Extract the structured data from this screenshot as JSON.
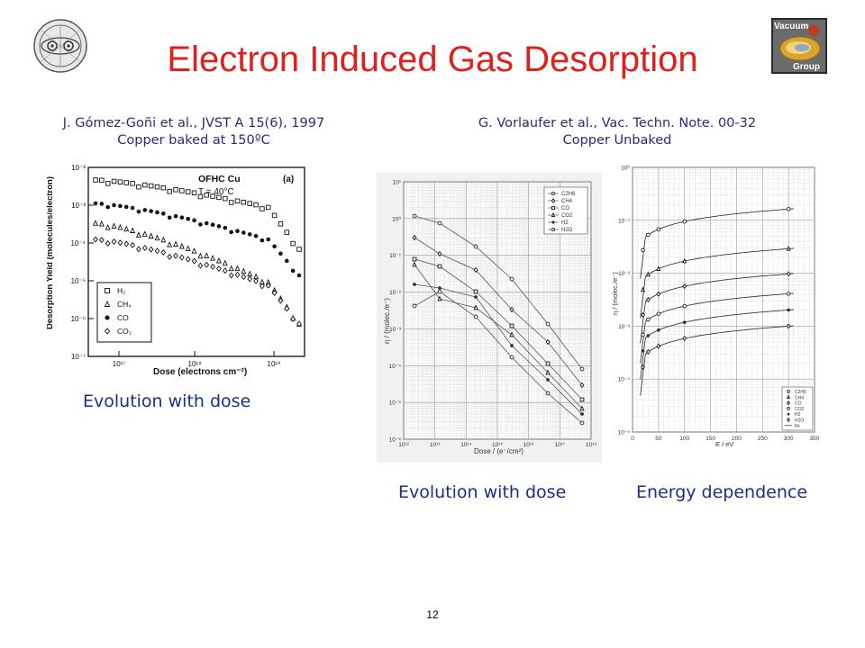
{
  "slide": {
    "title": "Electron Induced Gas Desorption",
    "page_number": "12"
  },
  "logos": {
    "left": "circular institute seal",
    "right": {
      "line1": "Vacuum",
      "line2": "Group"
    }
  },
  "references": {
    "left": {
      "line1": "J. Gómez-Goñi et al., JVST A 15(6), 1997",
      "line2": "Copper baked at 150ºC"
    },
    "right": {
      "line1": "G. Vorlaufer et al., Vac. Techn. Note. 00-32",
      "line2": "Copper Unbaked"
    }
  },
  "captions": {
    "left": "Evolution with dose",
    "middle": "Evolution with dose",
    "right": "Energy dependence"
  },
  "figure_left": {
    "inset_title": "OFHC Cu",
    "inset_temp": "T = 40°C",
    "panel_label": "(a)",
    "ylabel": "Desorption Yield (molecules/electron)",
    "xlabel": "Dose (electrons cm⁻²)",
    "yticks": [
      "10⁻²",
      "10⁻³",
      "10⁻⁴",
      "10⁻⁵",
      "10⁻⁶",
      "10⁻⁷"
    ],
    "xticks": [
      "10¹⁷",
      "10¹⁸",
      "10¹⁹"
    ],
    "legend": [
      "H₂",
      "CH₄",
      "CO",
      "CO₂"
    ]
  },
  "figure_middle": {
    "ylabel": "η / (molec./e⁻)",
    "xlabel": "Dose / (e⁻/cm²)",
    "yticks": [
      "10¹",
      "10⁰",
      "10⁻¹",
      "10⁻²",
      "10⁻³",
      "10⁻⁴",
      "10⁻⁵",
      "10⁻⁶"
    ],
    "xticks": [
      "10¹²",
      "10¹³",
      "10¹⁴",
      "10¹⁵",
      "10¹⁶",
      "10¹⁷",
      "10¹⁸"
    ],
    "legend": [
      "C2H6",
      "CH4",
      "CO",
      "CO2",
      "H2",
      "H2O"
    ]
  },
  "figure_right": {
    "ylabel": "η / (molec./e⁻)",
    "xlabel": "E / eV",
    "yticks": [
      "10⁰",
      "10⁻¹",
      "10⁻²",
      "10⁻³",
      "10⁻⁴",
      "10⁻⁵"
    ],
    "xticks": [
      "0",
      "50",
      "100",
      "150",
      "200",
      "250",
      "300",
      "350"
    ],
    "legend": [
      "C2H6",
      "CH4",
      "CO",
      "CO2",
      "H2",
      "H2O",
      "Fit"
    ]
  }
}
